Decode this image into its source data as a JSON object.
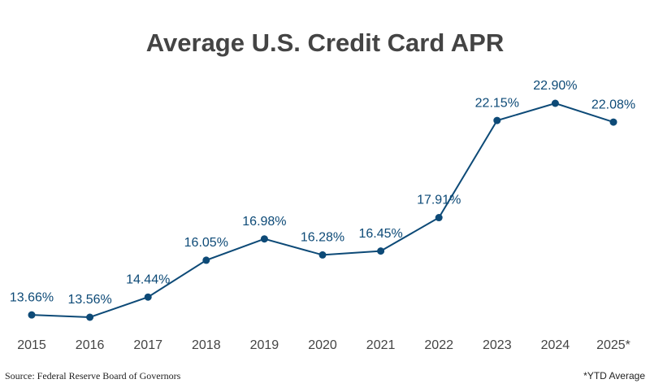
{
  "chart_data": {
    "type": "line",
    "title": "Average U.S. Credit Card APR",
    "categories": [
      "2015",
      "2016",
      "2017",
      "2018",
      "2019",
      "2020",
      "2021",
      "2022",
      "2023",
      "2024",
      "2025*"
    ],
    "series": [
      {
        "color": "#0d4a77",
        "values": [
          13.66,
          13.56,
          14.44,
          16.05,
          16.98,
          16.28,
          16.45,
          17.91,
          22.15,
          22.9,
          22.08
        ],
        "value_labels": [
          "13.66%",
          "13.56%",
          "14.44%",
          "16.05%",
          "16.98%",
          "16.28%",
          "16.45%",
          "17.91%",
          "22.15%",
          "22.90%",
          "22.08%"
        ]
      }
    ],
    "source": "Source: Federal Reserve Board of Governors",
    "note": "*YTD Average"
  }
}
